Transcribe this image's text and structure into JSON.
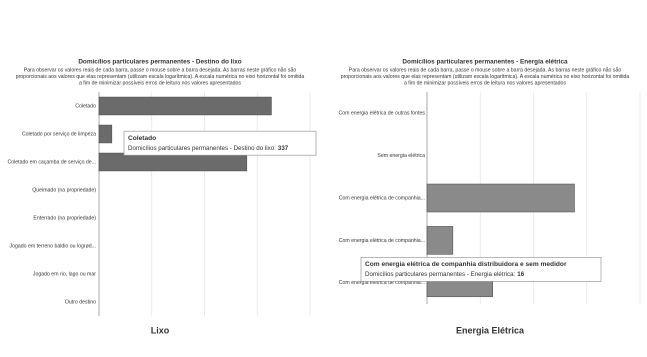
{
  "chart_data": [
    {
      "type": "bar",
      "orientation": "horizontal",
      "log_scale": true,
      "grid": true,
      "color": "#6b6b6b",
      "title": "Domicílios particulares permanentes - Destino do lixo",
      "subtitle": [
        "Para observar os valores reais de cada barra, passe o mouse sobre a barra desejada. As barras neste gráfico não são",
        "proporcionais aos valores que elas representam (utilizam escala logarítmica). A escala numérica no eixo horizontal foi omitida",
        "a fim de minimizar possíveis erros de leitura nos valores apresentados"
      ],
      "categories": [
        "Coletado",
        "Coletado por serviço de limpeza",
        "Coletado em caçamba de serviço de...",
        "Queimado (na propriedade)",
        "Enterrado (na propriedade)",
        "Jogado em terreno baldio ou logrød...",
        "Jogado em rio, lago ou mar",
        "Outro destino"
      ],
      "values": [
        337,
        13,
        204,
        0,
        0,
        0,
        0,
        0
      ],
      "xlim": [
        10,
        740
      ],
      "caption": "Lixo",
      "tooltip": {
        "index": 0,
        "label": "Domicílios particulares permanentes - Destino do lixo:"
      }
    },
    {
      "type": "bar",
      "orientation": "horizontal",
      "log_scale": true,
      "grid": true,
      "color": "#8a8a8a",
      "title": "Domicílios particulares permanentes - Energia elétrica",
      "subtitle": [
        "Para observar os valores reais de cada barra, passe o mouse sobre a barra desejada. As barras neste gráfico não são",
        "proporcionais aos valores que elas representam (utilizam escala logarítmica). A escala numérica no eixo horizontal foi omitida",
        "a fim de minimizar possíveis erros de leitura nos valores apresentados"
      ],
      "categories": [
        "Com energia elétrica de outras fontes",
        "Sem energia elétrica",
        "Com energia elétrica de companhia...",
        "Com energia elétrica de companhia...",
        "Com energia elétrica de companhia..."
      ],
      "values": [
        0,
        0,
        146,
        16,
        33
      ],
      "xlim": [
        10,
        480
      ],
      "caption": "Energia Elétrica",
      "tooltip": {
        "index": 3,
        "title": "Com energia elétrica de companhia distribuidora e sem medidor",
        "label": "Domicílios particulares permanentes - Energia elétrica:"
      }
    }
  ]
}
